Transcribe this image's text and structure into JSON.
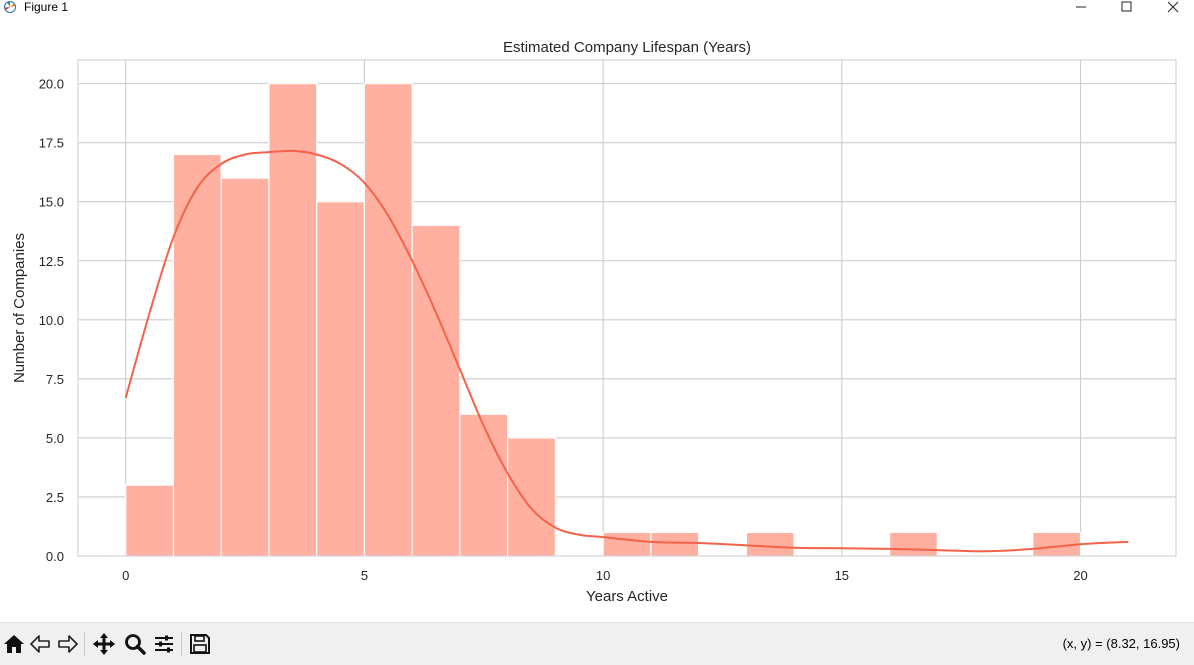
{
  "window": {
    "title": "Figure 1",
    "icon": "matplotlib-icon",
    "controls": [
      "minimize-icon",
      "maximize-icon",
      "close-icon"
    ]
  },
  "toolbar": {
    "buttons": [
      "home-icon",
      "back-icon",
      "forward-icon",
      "pan-icon",
      "zoom-icon",
      "configure-subplots-icon",
      "save-icon"
    ],
    "coords": "(x, y) = (8.32, 16.95)"
  },
  "colors": {
    "bar_fill": "#ffb0a0",
    "bar_edge": "#ffffff",
    "kde_line": "#f4624a",
    "grid": "#cccccc",
    "axes_frame": "#cccccc"
  },
  "chart_data": {
    "type": "bar",
    "histogram": true,
    "title": "Estimated Company Lifespan (Years)",
    "xlabel": "Years Active",
    "ylabel": "Number of Companies",
    "xlim": [
      -1,
      22
    ],
    "ylim": [
      0,
      21
    ],
    "xticks": [
      0,
      5,
      10,
      15,
      20
    ],
    "xtick_labels": [
      "0",
      "5",
      "10",
      "15",
      "20"
    ],
    "yticks": [
      0,
      2.5,
      5,
      7.5,
      10,
      12.5,
      15,
      17.5,
      20
    ],
    "ytick_labels": [
      "0.0",
      "2.5",
      "5.0",
      "7.5",
      "10.0",
      "12.5",
      "15.0",
      "17.5",
      "20.0"
    ],
    "grid": true,
    "bins": [
      {
        "x0": 0,
        "x1": 1,
        "count": 3
      },
      {
        "x0": 1,
        "x1": 2,
        "count": 17
      },
      {
        "x0": 2,
        "x1": 3,
        "count": 16
      },
      {
        "x0": 3,
        "x1": 4,
        "count": 20
      },
      {
        "x0": 4,
        "x1": 5,
        "count": 15
      },
      {
        "x0": 5,
        "x1": 6,
        "count": 20
      },
      {
        "x0": 6,
        "x1": 7,
        "count": 14
      },
      {
        "x0": 7,
        "x1": 8,
        "count": 6
      },
      {
        "x0": 8,
        "x1": 9,
        "count": 5
      },
      {
        "x0": 10,
        "x1": 11,
        "count": 1
      },
      {
        "x0": 11,
        "x1": 12,
        "count": 1
      },
      {
        "x0": 13,
        "x1": 14,
        "count": 1
      },
      {
        "x0": 16,
        "x1": 17,
        "count": 1
      },
      {
        "x0": 19,
        "x1": 20,
        "count": 1
      }
    ],
    "kde": {
      "x": [
        0,
        0.5,
        1,
        1.5,
        2,
        2.5,
        3,
        3.5,
        4,
        4.5,
        5,
        5.5,
        6,
        6.5,
        7,
        7.5,
        8,
        8.5,
        9,
        9.5,
        10,
        11,
        12,
        13,
        14,
        15,
        16,
        17,
        18,
        19,
        20,
        21
      ],
      "y": [
        6.7,
        10.3,
        13.5,
        15.6,
        16.6,
        17.0,
        17.1,
        17.15,
        17.0,
        16.6,
        15.8,
        14.4,
        12.5,
        10.3,
        7.9,
        5.5,
        3.5,
        2.0,
        1.2,
        0.9,
        0.8,
        0.6,
        0.55,
        0.45,
        0.35,
        0.33,
        0.3,
        0.25,
        0.2,
        0.3,
        0.5,
        0.6
      ]
    }
  }
}
